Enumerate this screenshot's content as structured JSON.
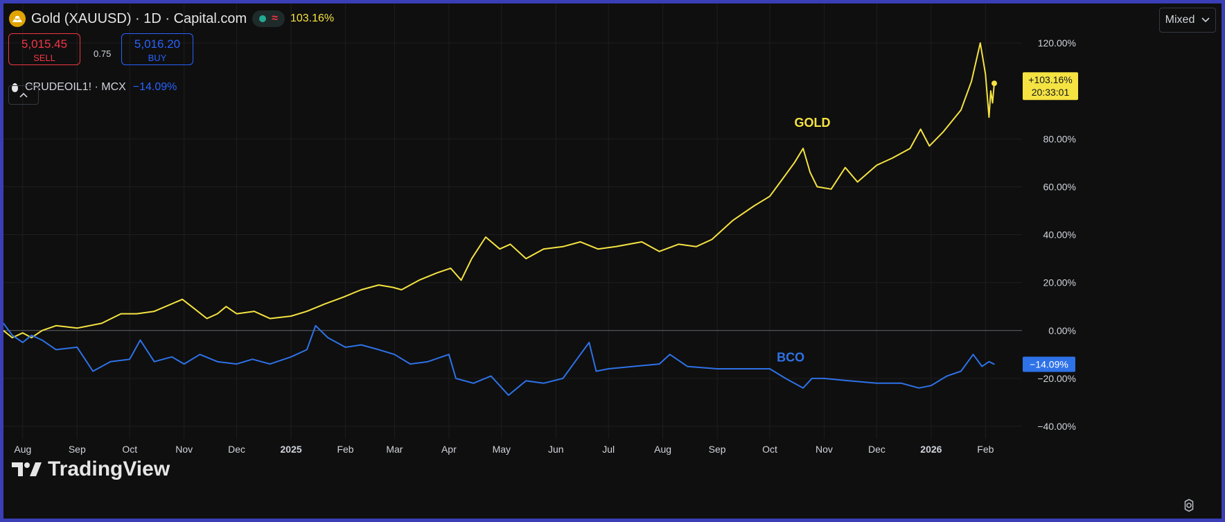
{
  "header": {
    "title": "Gold (XAUUSD) · 1D · Capital.com",
    "change": "103.16%",
    "wave_symbol": "≈"
  },
  "quote": {
    "sell_price": "5,015.45",
    "sell_label": "SELL",
    "spread": "0.75",
    "buy_price": "5,016.20",
    "buy_label": "BUY"
  },
  "compare": {
    "symbol": "CRUDEOIL1! · MCX",
    "change": "−14.09%"
  },
  "controls": {
    "collapse_label": "^",
    "scale_mode": "Mixed",
    "settings_symbol": "⚙"
  },
  "branding": {
    "logo_text": "TradingView",
    "logo_mark": "TV"
  },
  "colors": {
    "gold": "#f5e342",
    "bco": "#2e72e8",
    "background": "#0f0f0f",
    "grid": "#1e1e1e"
  },
  "chart_data": {
    "type": "line",
    "y_unit": "percent",
    "ylim": [
      -40,
      120
    ],
    "y_ticks": [
      "120.00%",
      "80.00%",
      "60.00%",
      "40.00%",
      "20.00%",
      "0.00%",
      "−20.00%",
      "−40.00%"
    ],
    "y_tick_values": [
      120,
      80,
      60,
      40,
      20,
      0,
      -20,
      -40
    ],
    "x_ticks": [
      "Aug",
      "Sep",
      "Oct",
      "Nov",
      "Dec",
      "2025",
      "Feb",
      "Mar",
      "Apr",
      "May",
      "Jun",
      "Jul",
      "Aug",
      "Sep",
      "Oct",
      "Nov",
      "Dec",
      "2026",
      "Feb"
    ],
    "x_tick_dates": [
      "2024-08-01",
      "2024-09-01",
      "2024-10-01",
      "2024-11-01",
      "2024-12-01",
      "2025-01-01",
      "2025-02-01",
      "2025-03-01",
      "2025-04-01",
      "2025-05-01",
      "2025-06-01",
      "2025-07-01",
      "2025-08-01",
      "2025-09-01",
      "2025-10-01",
      "2025-11-01",
      "2025-12-01",
      "2026-01-01",
      "2026-02-01"
    ],
    "x_range": [
      "2024-07-21",
      "2026-02-06"
    ],
    "grid": true,
    "series": [
      {
        "name": "GOLD",
        "color": "#f5e342",
        "last_value": 103.16,
        "last_label": "+103.16%",
        "countdown": "20:33:01",
        "points": [
          [
            "2024-07-21",
            0
          ],
          [
            "2024-07-26",
            -3
          ],
          [
            "2024-08-01",
            -1
          ],
          [
            "2024-08-06",
            -3
          ],
          [
            "2024-08-12",
            0
          ],
          [
            "2024-08-20",
            2
          ],
          [
            "2024-09-01",
            1
          ],
          [
            "2024-09-15",
            3
          ],
          [
            "2024-09-26",
            7
          ],
          [
            "2024-10-05",
            7
          ],
          [
            "2024-10-15",
            8
          ],
          [
            "2024-10-31",
            13
          ],
          [
            "2024-11-07",
            9
          ],
          [
            "2024-11-14",
            5
          ],
          [
            "2024-11-20",
            7
          ],
          [
            "2024-11-25",
            10
          ],
          [
            "2024-12-01",
            7
          ],
          [
            "2024-12-11",
            8
          ],
          [
            "2024-12-20",
            5
          ],
          [
            "2025-01-01",
            6
          ],
          [
            "2025-01-10",
            8
          ],
          [
            "2025-01-20",
            11
          ],
          [
            "2025-01-31",
            14
          ],
          [
            "2025-02-10",
            17
          ],
          [
            "2025-02-20",
            19
          ],
          [
            "2025-02-28",
            18
          ],
          [
            "2025-03-05",
            17
          ],
          [
            "2025-03-15",
            21
          ],
          [
            "2025-03-25",
            24
          ],
          [
            "2025-04-02",
            26
          ],
          [
            "2025-04-08",
            21
          ],
          [
            "2025-04-14",
            30
          ],
          [
            "2025-04-22",
            39
          ],
          [
            "2025-04-30",
            34
          ],
          [
            "2025-05-06",
            36
          ],
          [
            "2025-05-15",
            30
          ],
          [
            "2025-05-25",
            34
          ],
          [
            "2025-06-05",
            35
          ],
          [
            "2025-06-15",
            37
          ],
          [
            "2025-06-25",
            34
          ],
          [
            "2025-07-05",
            35
          ],
          [
            "2025-07-20",
            37
          ],
          [
            "2025-07-30",
            33
          ],
          [
            "2025-08-10",
            36
          ],
          [
            "2025-08-20",
            35
          ],
          [
            "2025-08-29",
            38
          ],
          [
            "2025-09-10",
            46
          ],
          [
            "2025-09-22",
            52
          ],
          [
            "2025-10-01",
            56
          ],
          [
            "2025-10-08",
            63
          ],
          [
            "2025-10-15",
            70
          ],
          [
            "2025-10-20",
            76
          ],
          [
            "2025-10-24",
            66
          ],
          [
            "2025-10-28",
            60
          ],
          [
            "2025-11-05",
            59
          ],
          [
            "2025-11-13",
            68
          ],
          [
            "2025-11-20",
            62
          ],
          [
            "2025-12-01",
            69
          ],
          [
            "2025-12-10",
            72
          ],
          [
            "2025-12-20",
            76
          ],
          [
            "2025-12-26",
            84
          ],
          [
            "2025-12-31",
            77
          ],
          [
            "2026-01-08",
            83
          ],
          [
            "2026-01-18",
            92
          ],
          [
            "2026-01-24",
            104
          ],
          [
            "2026-01-29",
            120
          ],
          [
            "2026-02-01",
            107
          ],
          [
            "2026-02-03",
            89
          ],
          [
            "2026-02-04",
            100
          ],
          [
            "2026-02-05",
            95
          ],
          [
            "2026-02-06",
            103.16
          ]
        ]
      },
      {
        "name": "BCO",
        "color": "#2e72e8",
        "last_value": -14.09,
        "last_label": "−14.09%",
        "points": [
          [
            "2024-07-21",
            3
          ],
          [
            "2024-07-26",
            -2
          ],
          [
            "2024-08-01",
            -5
          ],
          [
            "2024-08-06",
            -2
          ],
          [
            "2024-08-12",
            -4
          ],
          [
            "2024-08-20",
            -8
          ],
          [
            "2024-09-01",
            -7
          ],
          [
            "2024-09-10",
            -17
          ],
          [
            "2024-09-20",
            -13
          ],
          [
            "2024-10-01",
            -12
          ],
          [
            "2024-10-07",
            -4
          ],
          [
            "2024-10-15",
            -13
          ],
          [
            "2024-10-25",
            -11
          ],
          [
            "2024-11-01",
            -14
          ],
          [
            "2024-11-10",
            -10
          ],
          [
            "2024-11-20",
            -13
          ],
          [
            "2024-12-01",
            -14
          ],
          [
            "2024-12-10",
            -12
          ],
          [
            "2024-12-20",
            -14
          ],
          [
            "2025-01-01",
            -11
          ],
          [
            "2025-01-10",
            -8
          ],
          [
            "2025-01-15",
            2
          ],
          [
            "2025-01-22",
            -3
          ],
          [
            "2025-02-01",
            -7
          ],
          [
            "2025-02-10",
            -6
          ],
          [
            "2025-02-20",
            -8
          ],
          [
            "2025-03-01",
            -10
          ],
          [
            "2025-03-10",
            -14
          ],
          [
            "2025-03-20",
            -13
          ],
          [
            "2025-04-01",
            -10
          ],
          [
            "2025-04-05",
            -20
          ],
          [
            "2025-04-15",
            -22
          ],
          [
            "2025-04-25",
            -19
          ],
          [
            "2025-05-05",
            -27
          ],
          [
            "2025-05-15",
            -21
          ],
          [
            "2025-05-25",
            -22
          ],
          [
            "2025-06-05",
            -20
          ],
          [
            "2025-06-13",
            -12
          ],
          [
            "2025-06-20",
            -5
          ],
          [
            "2025-06-24",
            -17
          ],
          [
            "2025-07-01",
            -16
          ],
          [
            "2025-07-15",
            -15
          ],
          [
            "2025-07-30",
            -14
          ],
          [
            "2025-08-05",
            -10
          ],
          [
            "2025-08-15",
            -15
          ],
          [
            "2025-09-01",
            -16
          ],
          [
            "2025-09-15",
            -16
          ],
          [
            "2025-10-01",
            -16
          ],
          [
            "2025-10-10",
            -20
          ],
          [
            "2025-10-20",
            -24
          ],
          [
            "2025-10-25",
            -20
          ],
          [
            "2025-11-01",
            -20
          ],
          [
            "2025-11-15",
            -21
          ],
          [
            "2025-12-01",
            -22
          ],
          [
            "2025-12-15",
            -22
          ],
          [
            "2025-12-25",
            -24
          ],
          [
            "2026-01-01",
            -23
          ],
          [
            "2026-01-10",
            -19
          ],
          [
            "2026-01-18",
            -17
          ],
          [
            "2026-01-25",
            -10
          ],
          [
            "2026-01-30",
            -15
          ],
          [
            "2026-02-03",
            -13
          ],
          [
            "2026-02-06",
            -14.09
          ]
        ]
      }
    ],
    "annotations": [
      {
        "text": "GOLD",
        "date": "2025-10-15",
        "value": 85,
        "color": "#f5e342"
      },
      {
        "text": "BCO",
        "date": "2025-10-05",
        "value": -13,
        "color": "#2e72e8"
      }
    ]
  }
}
